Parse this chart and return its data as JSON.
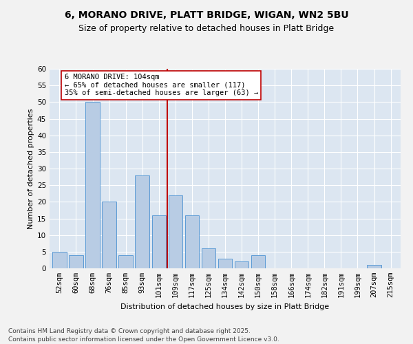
{
  "title": "6, MORANO DRIVE, PLATT BRIDGE, WIGAN, WN2 5BU",
  "subtitle": "Size of property relative to detached houses in Platt Bridge",
  "xlabel": "Distribution of detached houses by size in Platt Bridge",
  "ylabel": "Number of detached properties",
  "categories": [
    "52sqm",
    "60sqm",
    "68sqm",
    "76sqm",
    "85sqm",
    "93sqm",
    "101sqm",
    "109sqm",
    "117sqm",
    "125sqm",
    "134sqm",
    "142sqm",
    "150sqm",
    "158sqm",
    "166sqm",
    "174sqm",
    "182sqm",
    "191sqm",
    "199sqm",
    "207sqm",
    "215sqm"
  ],
  "values": [
    5,
    4,
    50,
    20,
    4,
    28,
    16,
    22,
    16,
    6,
    3,
    2,
    4,
    0,
    0,
    0,
    0,
    0,
    0,
    1,
    0
  ],
  "bar_color": "#b8cce4",
  "bar_edge_color": "#5b9bd5",
  "vline_color": "#c00000",
  "annotation_text": "6 MORANO DRIVE: 104sqm\n← 65% of detached houses are smaller (117)\n35% of semi-detached houses are larger (63) →",
  "ylim": [
    0,
    60
  ],
  "yticks": [
    0,
    5,
    10,
    15,
    20,
    25,
    30,
    35,
    40,
    45,
    50,
    55,
    60
  ],
  "fig_bg_color": "#f2f2f2",
  "plot_bg_color": "#dce6f1",
  "grid_color": "#ffffff",
  "footer": "Contains HM Land Registry data © Crown copyright and database right 2025.\nContains public sector information licensed under the Open Government Licence v3.0.",
  "title_fontsize": 10,
  "subtitle_fontsize": 9,
  "axis_label_fontsize": 8,
  "tick_fontsize": 7.5,
  "annotation_fontsize": 7.5,
  "footer_fontsize": 6.5
}
